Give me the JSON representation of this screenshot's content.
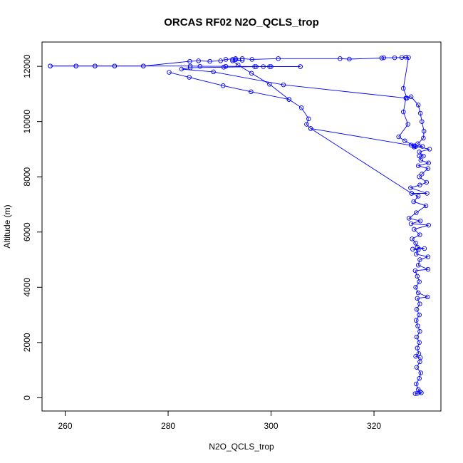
{
  "chart_data": {
    "type": "line",
    "title": "ORCAS RF02 N2O_QCLS_trop",
    "xlabel": "N2O_QCLS_trop",
    "ylabel": "Altitude (m)",
    "xlim": [
      255.5,
      333.0
    ],
    "ylim": [
      -480,
      12880
    ],
    "xticks": [
      260,
      280,
      300,
      320
    ],
    "yticks": [
      0,
      2000,
      4000,
      6000,
      8000,
      10000,
      12000
    ],
    "grid": false,
    "marker": "open-circle",
    "series_color": "#0000ff",
    "series": [
      {
        "points": [
          [
            328.0,
            150
          ],
          [
            328.4,
            160
          ],
          [
            329.2,
            180
          ],
          [
            328.9,
            220
          ],
          [
            328.6,
            300
          ],
          [
            328.2,
            500
          ],
          [
            328.8,
            700
          ],
          [
            329.1,
            900
          ],
          [
            328.3,
            1100
          ],
          [
            328.9,
            1300
          ],
          [
            329.0,
            1450
          ],
          [
            328.1,
            1500
          ],
          [
            328.7,
            1600
          ],
          [
            328.4,
            1800
          ],
          [
            328.8,
            2000
          ],
          [
            328.3,
            2200
          ],
          [
            328.9,
            2400
          ],
          [
            328.5,
            2600
          ],
          [
            328.2,
            2800
          ],
          [
            328.8,
            3000
          ],
          [
            328.3,
            3200
          ],
          [
            328.9,
            3400
          ],
          [
            328.4,
            3600
          ],
          [
            330.4,
            3650
          ],
          [
            328.6,
            3800
          ],
          [
            328.1,
            4000
          ],
          [
            328.8,
            4200
          ],
          [
            328.4,
            4400
          ],
          [
            328.0,
            4600
          ],
          [
            330.5,
            4650
          ],
          [
            328.6,
            4800
          ],
          [
            328.9,
            5000
          ],
          [
            330.5,
            5100
          ],
          [
            328.2,
            5200
          ],
          [
            328.6,
            5350
          ],
          [
            327.5,
            5380
          ],
          [
            329.8,
            5400
          ],
          [
            328.4,
            5450
          ],
          [
            328.1,
            5600
          ],
          [
            327.4,
            5750
          ],
          [
            328.9,
            5900
          ],
          [
            327.8,
            6100
          ],
          [
            330.6,
            6250
          ],
          [
            327.2,
            6300
          ],
          [
            329.0,
            6400
          ],
          [
            326.8,
            6500
          ],
          [
            328.2,
            6700
          ],
          [
            330.1,
            6950
          ],
          [
            327.7,
            7100
          ],
          [
            328.6,
            7300
          ],
          [
            327.3,
            7400
          ],
          [
            330.3,
            7400
          ],
          [
            327.1,
            7600
          ],
          [
            328.9,
            7700
          ],
          [
            330.2,
            7800
          ],
          [
            328.8,
            8000
          ],
          [
            329.3,
            8100
          ],
          [
            330.5,
            8300
          ],
          [
            328.6,
            8400
          ],
          [
            330.6,
            8500
          ],
          [
            329.1,
            8600
          ],
          [
            328.8,
            8750
          ],
          [
            329.6,
            8750
          ],
          [
            328.8,
            8900
          ],
          [
            330.8,
            9000
          ],
          [
            328.1,
            9100
          ],
          [
            327.2,
            9150
          ],
          [
            327.8,
            9080
          ],
          [
            329.4,
            9100
          ],
          [
            328.5,
            9200
          ],
          [
            329.6,
            9400
          ],
          [
            329.7,
            9650
          ],
          [
            329.3,
            10000
          ],
          [
            329.0,
            10300
          ],
          [
            328.6,
            10600
          ],
          [
            327.2,
            10900
          ],
          [
            326.2,
            10850
          ],
          [
            325.7,
            10350
          ],
          [
            326.6,
            9900
          ],
          [
            324.8,
            9450
          ],
          [
            326.0,
            9300
          ],
          [
            327.8,
            9120
          ]
        ]
      },
      {
        "points": [
          [
            327.3,
            7400
          ],
          [
            307.7,
            9750
          ],
          [
            306.9,
            9900
          ],
          [
            307.3,
            10100
          ],
          [
            305.9,
            10500
          ],
          [
            303.5,
            10800
          ],
          [
            299.7,
            11350
          ],
          [
            296.2,
            11750
          ],
          [
            293.6,
            12050
          ],
          [
            292.5,
            12200
          ],
          [
            294.4,
            12220
          ],
          [
            293.1,
            12240
          ],
          [
            292.5,
            12250
          ]
        ]
      },
      {
        "points": [
          [
            327.8,
            9120
          ],
          [
            307.7,
            9750
          ]
        ]
      },
      {
        "points": [
          [
            326.2,
            10850
          ],
          [
            302.4,
            11330
          ],
          [
            288.8,
            11800
          ],
          [
            282.6,
            11900
          ],
          [
            284.3,
            11950
          ],
          [
            290.8,
            11970
          ],
          [
            297.1,
            11990
          ],
          [
            298.5,
            11990
          ],
          [
            300.0,
            11990
          ],
          [
            305.7,
            11990
          ]
        ]
      },
      {
        "points": [
          [
            305.7,
            11990
          ],
          [
            299.7,
            11990
          ],
          [
            296.8,
            11990
          ],
          [
            291.2,
            12000
          ],
          [
            286.2,
            12000
          ],
          [
            284.3,
            12010
          ],
          [
            275.2,
            12010
          ],
          [
            269.6,
            12010
          ],
          [
            265.8,
            12010
          ],
          [
            262.1,
            12010
          ],
          [
            257.1,
            12010
          ]
        ]
      },
      {
        "points": [
          [
            257.1,
            12010
          ],
          [
            262.1,
            12010
          ],
          [
            265.8,
            12010
          ],
          [
            269.6,
            12010
          ],
          [
            275.2,
            12010
          ],
          [
            284.2,
            12180
          ],
          [
            285.9,
            12200
          ],
          [
            288.1,
            12180
          ],
          [
            290.2,
            12200
          ],
          [
            291.2,
            12250
          ],
          [
            293.1,
            12280
          ],
          [
            294.4,
            12280
          ],
          [
            296.3,
            12250
          ],
          [
            301.4,
            12280
          ],
          [
            313.4,
            12280
          ],
          [
            315.2,
            12260
          ],
          [
            321.5,
            12300
          ],
          [
            321.9,
            12310
          ],
          [
            324.0,
            12310
          ],
          [
            325.4,
            12320
          ],
          [
            326.2,
            12330
          ],
          [
            326.7,
            12320
          ],
          [
            325.7,
            11200
          ],
          [
            326.4,
            10850
          ]
        ]
      },
      {
        "points": [
          [
            280.2,
            11780
          ],
          [
            284.1,
            11600
          ],
          [
            290.7,
            11300
          ],
          [
            296.1,
            11080
          ],
          [
            303.5,
            10800
          ]
        ]
      }
    ]
  }
}
